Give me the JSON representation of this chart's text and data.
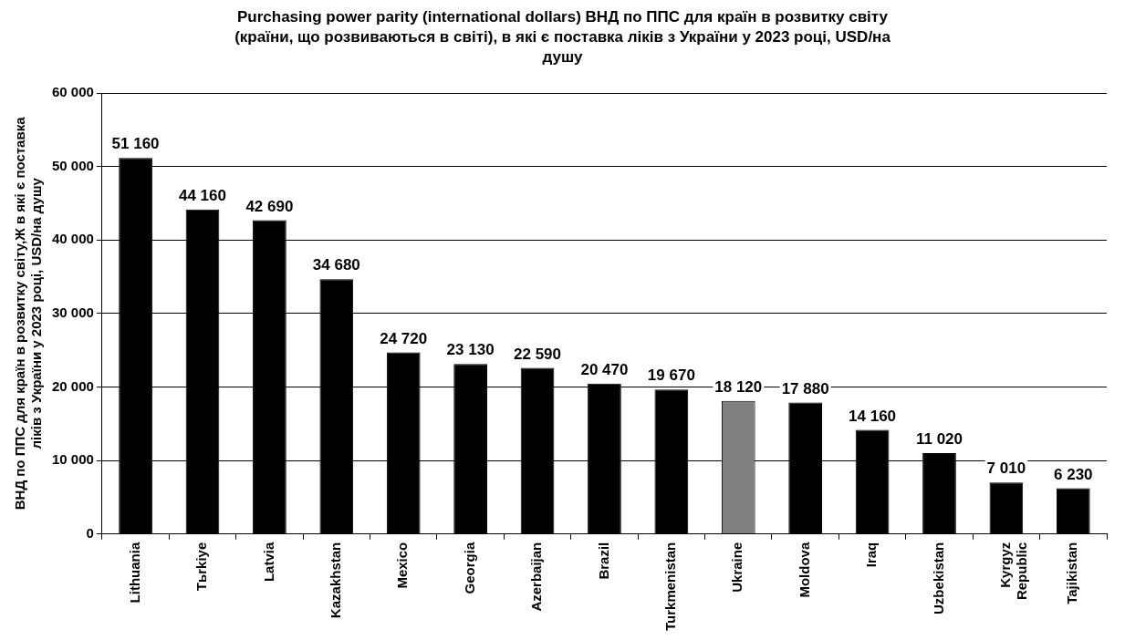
{
  "chart_data": {
    "type": "bar",
    "title": "Purchasing power parity (international dollars) ВНД по ППС для країн в розвитку світу (країни, що розвиваються в світі), в які є поставка ліків з України у 2023 році, USD/на душу",
    "ylabel": "ВНД по ППС для країн в розвитку світу,Ж в які є поставка ліків з України у 2023 році, USD/на душу",
    "categories": [
      "Lithuania",
      "Tьrkiye",
      "Latvia",
      "Kazakhstan",
      "Mexico",
      "Georgia",
      "Azerbaijan",
      "Brazil",
      "Turkmenistan",
      "Ukraine",
      "Moldova",
      "Iraq",
      "Uzbekistan",
      "Kyrgyz Republic",
      "Tajikistan"
    ],
    "values": [
      51160,
      44160,
      42690,
      34680,
      24720,
      23130,
      22590,
      20470,
      19670,
      18120,
      17880,
      14160,
      11020,
      7010,
      6230
    ],
    "colors": [
      "#000000",
      "#000000",
      "#000000",
      "#000000",
      "#000000",
      "#000000",
      "#000000",
      "#000000",
      "#000000",
      "#808080",
      "#000000",
      "#000000",
      "#000000",
      "#000000",
      "#000000"
    ],
    "value_labels": [
      "51 160",
      "44 160",
      "42 690",
      "34 680",
      "24 720",
      "23 130",
      "22 590",
      "20 470",
      "19 670",
      "18 120",
      "17 880",
      "14 160",
      "11 020",
      "7 010",
      "6 230"
    ],
    "ylim": [
      0,
      60000
    ],
    "yticks": [
      {
        "value": 0,
        "label": "0"
      },
      {
        "value": 10000,
        "label": "10 000"
      },
      {
        "value": 20000,
        "label": "20 000"
      },
      {
        "value": 30000,
        "label": "30 000"
      },
      {
        "value": 40000,
        "label": "40 000"
      },
      {
        "value": 50000,
        "label": "50 000"
      },
      {
        "value": 60000,
        "label": "60 000"
      }
    ],
    "grid": "y",
    "legend": false
  }
}
